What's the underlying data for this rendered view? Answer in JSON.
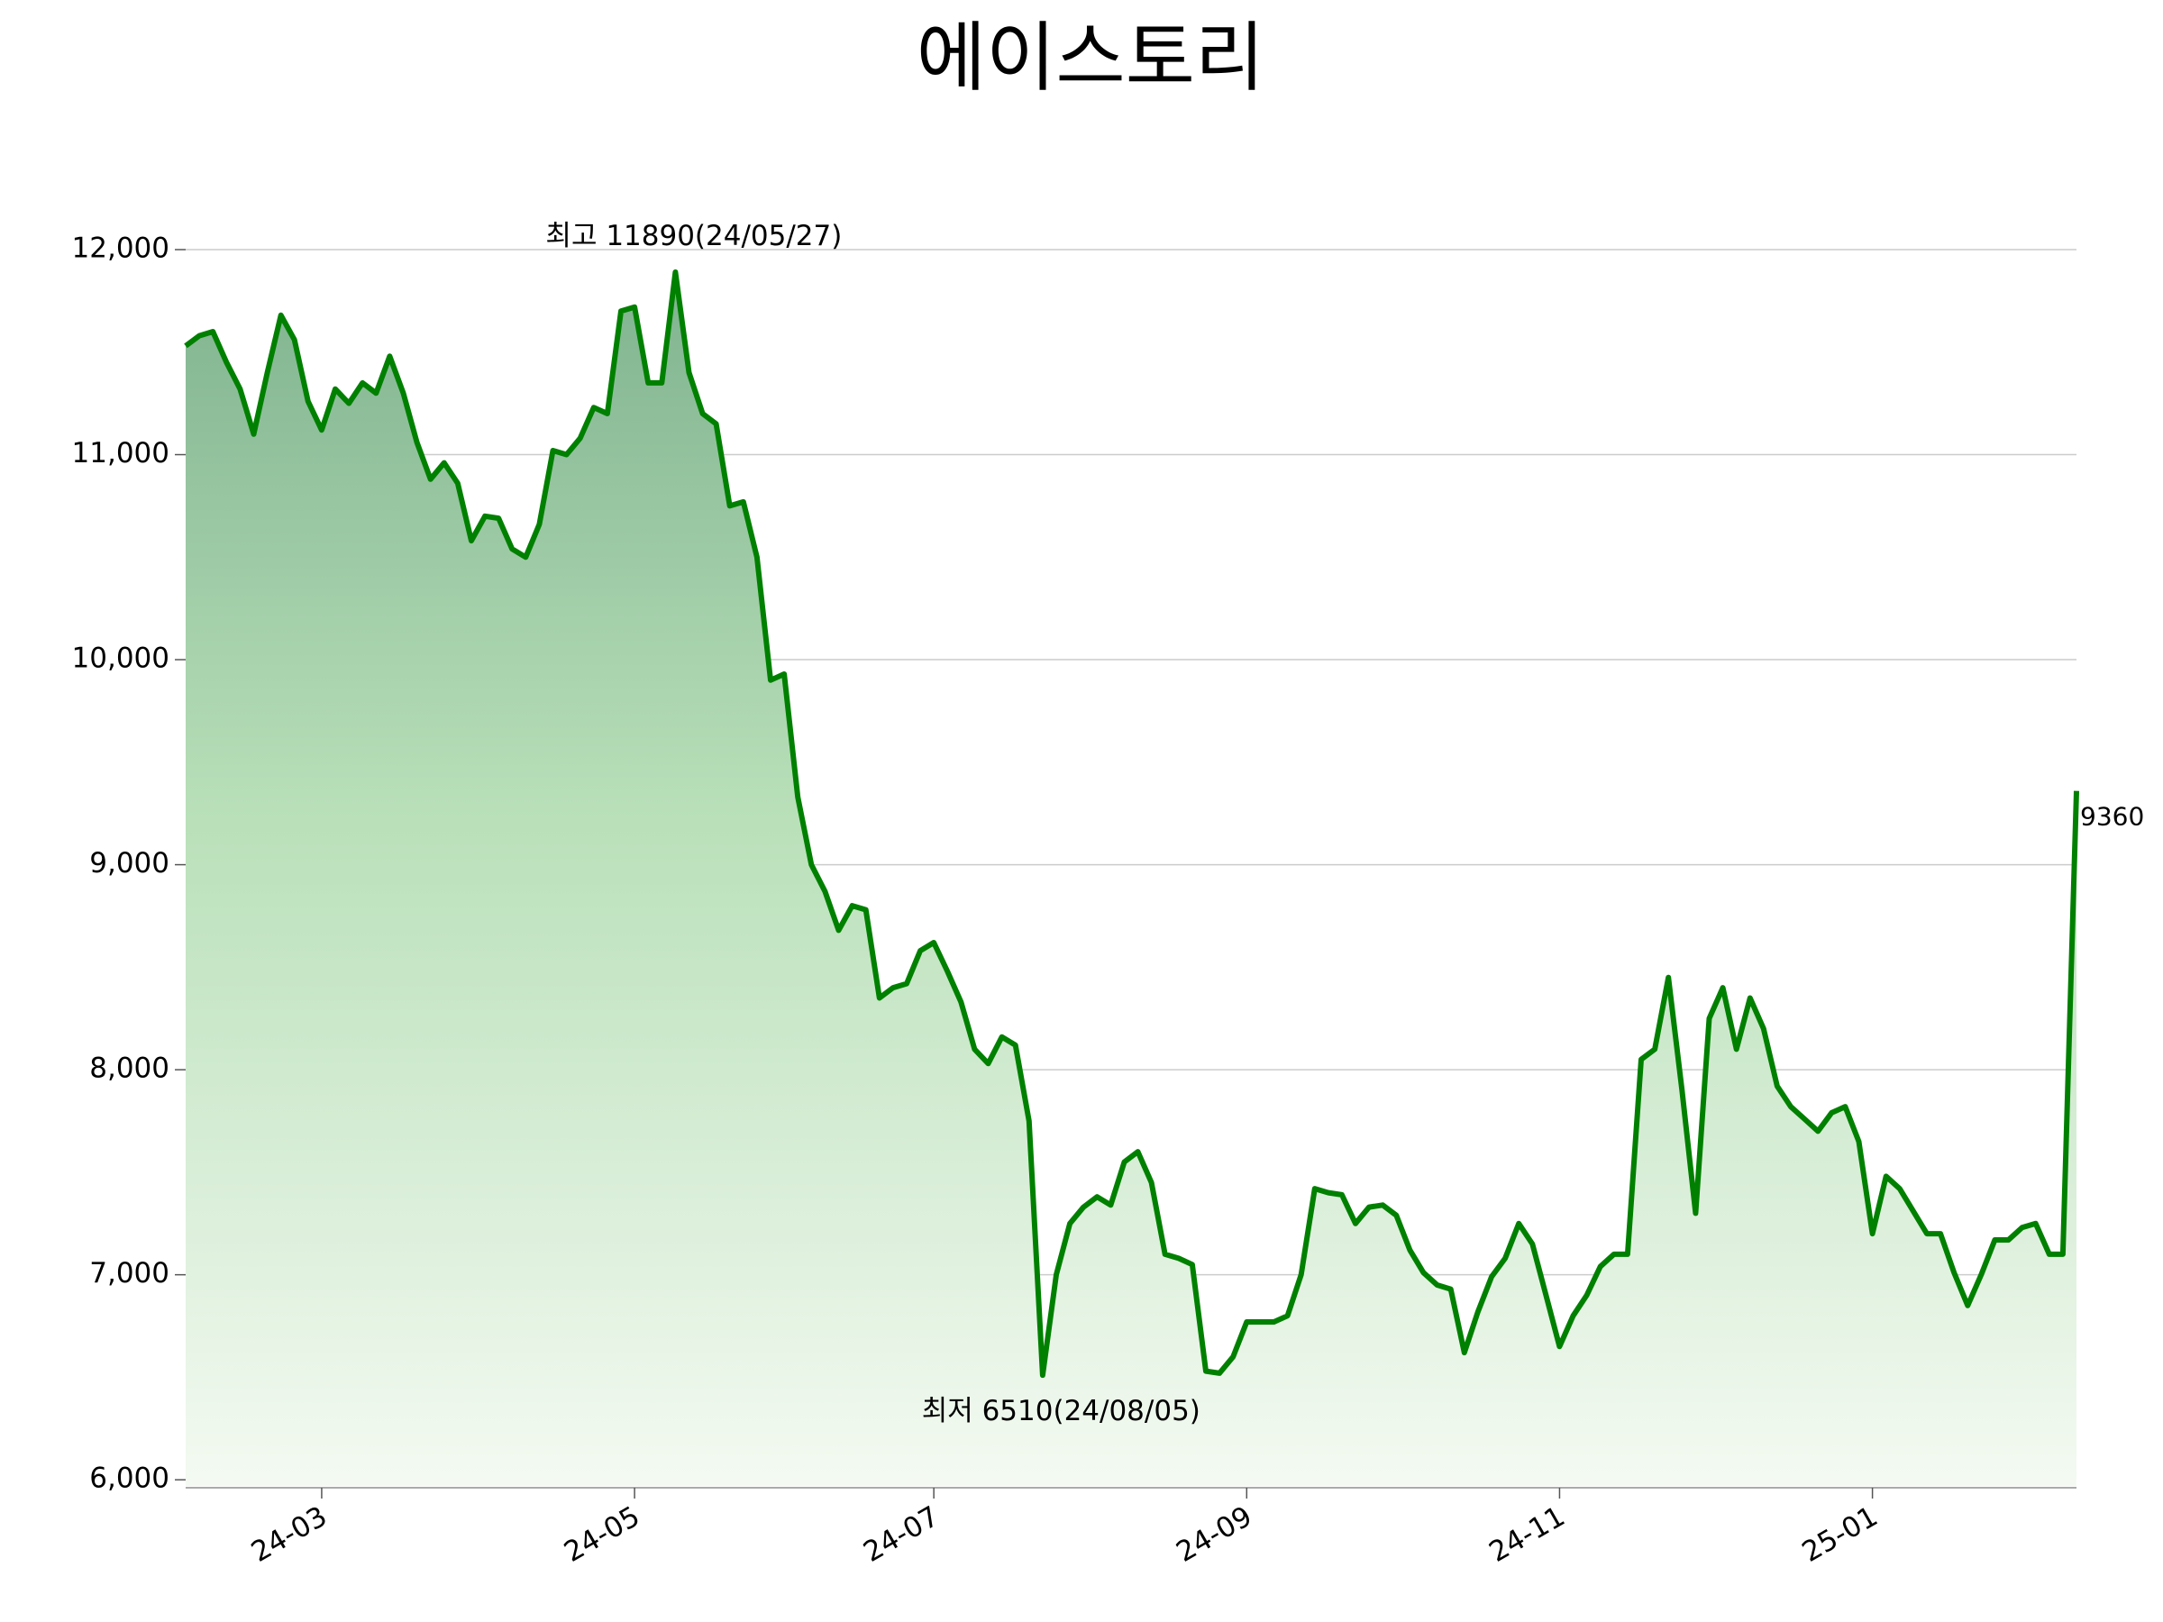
{
  "chart_data": {
    "type": "line",
    "title": "에이스토리",
    "categories": [
      null,
      null,
      null,
      null,
      null,
      null,
      null,
      null,
      null,
      null,
      "24-03",
      null,
      null,
      null,
      null,
      null,
      null,
      null,
      null,
      null,
      null,
      null,
      null,
      null,
      null,
      null,
      null,
      null,
      null,
      null,
      null,
      null,
      null,
      "24-05",
      null,
      null,
      null,
      null,
      null,
      null,
      null,
      null,
      null,
      null,
      null,
      null,
      null,
      null,
      null,
      null,
      null,
      null,
      null,
      null,
      null,
      "24-07",
      null,
      null,
      null,
      null,
      null,
      null,
      null,
      null,
      null,
      null,
      null,
      null,
      null,
      null,
      null,
      null,
      null,
      null,
      null,
      null,
      null,
      null,
      "24-09",
      null,
      null,
      null,
      null,
      null,
      null,
      null,
      null,
      null,
      null,
      null,
      null,
      null,
      null,
      null,
      null,
      null,
      null,
      null,
      null,
      null,
      null,
      "24-11",
      null,
      null,
      null,
      null,
      null,
      null,
      null,
      null,
      null,
      null,
      null,
      null,
      null,
      null,
      null,
      null,
      null,
      null,
      null,
      null,
      null,
      null,
      "25-01",
      null,
      null,
      null,
      null,
      null,
      null,
      null,
      null,
      null,
      null,
      null,
      null,
      null,
      null,
      null
    ],
    "series": [
      {
        "color": "#008000",
        "values": [
          11530,
          11580,
          11600,
          11450,
          11320,
          11100,
          11400,
          11680,
          11560,
          11260,
          11120,
          11320,
          11250,
          11350,
          11300,
          11480,
          11300,
          11060,
          10880,
          10960,
          10860,
          10580,
          10700,
          10690,
          10540,
          10500,
          10660,
          11020,
          11000,
          11080,
          11230,
          11200,
          11700,
          11720,
          11350,
          11350,
          11890,
          11400,
          11200,
          11150,
          10750,
          10770,
          10500,
          9900,
          9930,
          9330,
          9000,
          8870,
          8680,
          8800,
          8780,
          8350,
          8400,
          8420,
          8580,
          8620,
          8480,
          8330,
          8100,
          8030,
          8160,
          8120,
          7750,
          6510,
          7000,
          7250,
          7330,
          7380,
          7340,
          7550,
          7600,
          7450,
          7100,
          7080,
          7050,
          6530,
          6520,
          6600,
          6770,
          6770,
          6770,
          6800,
          7000,
          7420,
          7400,
          7390,
          7250,
          7330,
          7340,
          7290,
          7120,
          7010,
          6950,
          6930,
          6620,
          6820,
          6990,
          7080,
          7250,
          7150,
          6900,
          6650,
          6800,
          6900,
          7040,
          7100,
          7100,
          8050,
          8100,
          8450,
          7900,
          7300,
          8250,
          8400,
          8100,
          8350,
          8200,
          7920,
          7820,
          7760,
          7700,
          7790,
          7820,
          7650,
          7200,
          7480,
          7420,
          7310,
          7200,
          7200,
          7010,
          6850,
          7000,
          7170,
          7170,
          7230,
          7250,
          7100,
          7100,
          9360
        ]
      }
    ],
    "annotations": [
      {
        "text": "최고 11890(24/05/27)",
        "color": "#ff0000"
      },
      {
        "text": "최저 6510(24/08/05)",
        "color": "#0000ff"
      }
    ],
    "ylim": [
      5970,
      12000
    ],
    "yticks": [
      {
        "value": 6000,
        "label": "6,000"
      },
      {
        "value": 7000,
        "label": "7,000"
      },
      {
        "value": 8000,
        "label": "8,000"
      },
      {
        "value": 9000,
        "label": "9,000"
      },
      {
        "value": 10000,
        "label": "10,000"
      },
      {
        "value": 11000,
        "label": "11,000"
      },
      {
        "value": 12000,
        "label": "12,000"
      }
    ],
    "grid": true
  }
}
